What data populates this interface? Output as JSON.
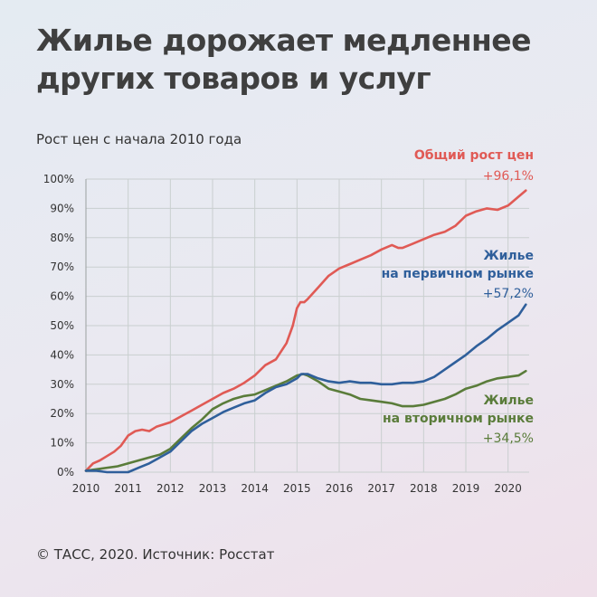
{
  "header": {
    "title_line1": "Жилье дорожает медленнее",
    "title_line2": "других товаров и услуг",
    "subtitle": "Рост цен с начала 2010 года"
  },
  "footer": {
    "source": "© ТАСС, 2020. Источник: Росстат"
  },
  "colors": {
    "red": "#e05a55",
    "blue": "#2f5f9b",
    "green": "#5a7c3a"
  },
  "chart_data": {
    "type": "line",
    "title": "",
    "xlabel": "",
    "ylabel": "",
    "x_ticks": [
      "2010",
      "2011",
      "2012",
      "2013",
      "2014",
      "2015",
      "2016",
      "2017",
      "2018",
      "2019",
      "2020"
    ],
    "y_ticks": [
      "0%",
      "10%",
      "20%",
      "30%",
      "40%",
      "50%",
      "60%",
      "70%",
      "80%",
      "90%",
      "100%"
    ],
    "xlim": [
      2010,
      2020.5
    ],
    "ylim": [
      0,
      100
    ],
    "grid": true,
    "series": [
      {
        "name_line1": "Общий рост цен",
        "name_line2": "",
        "end_label": "+96,1%",
        "color": "#e05a55",
        "x": [
          2010,
          2010.17,
          2010.33,
          2010.5,
          2010.67,
          2010.83,
          2011,
          2011.17,
          2011.33,
          2011.5,
          2011.67,
          2012,
          2012.25,
          2012.5,
          2012.75,
          2013,
          2013.25,
          2013.5,
          2013.75,
          2014,
          2014.25,
          2014.5,
          2014.75,
          2014.9,
          2015,
          2015.08,
          2015.17,
          2015.25,
          2015.5,
          2015.75,
          2016,
          2016.25,
          2016.5,
          2016.75,
          2017,
          2017.25,
          2017.4,
          2017.5,
          2017.75,
          2018,
          2018.25,
          2018.5,
          2018.75,
          2019,
          2019.25,
          2019.5,
          2019.75,
          2020,
          2020.25,
          2020.42
        ],
        "values": [
          0.5,
          3,
          4,
          5.5,
          7,
          9,
          12.5,
          14,
          14.5,
          14,
          15.5,
          17,
          19,
          21,
          23,
          25,
          27,
          28.5,
          30.5,
          33,
          36.5,
          38.5,
          44,
          50,
          56,
          58,
          58,
          59,
          63,
          67,
          69.5,
          71,
          72.5,
          74,
          76,
          77.5,
          76.5,
          76.5,
          78,
          79.5,
          81,
          82,
          84,
          87.5,
          89,
          90,
          89.5,
          91,
          94,
          96.1
        ]
      },
      {
        "name_line1": "Жилье",
        "name_line2": "на первичном рынке",
        "end_label": "+57,2%",
        "color": "#2f5f9b",
        "x": [
          2010,
          2010.25,
          2010.5,
          2010.75,
          2011,
          2011.25,
          2011.5,
          2011.75,
          2012,
          2012.25,
          2012.5,
          2012.75,
          2013,
          2013.25,
          2013.5,
          2013.75,
          2014,
          2014.25,
          2014.5,
          2014.75,
          2015,
          2015.1,
          2015.25,
          2015.5,
          2015.75,
          2016,
          2016.25,
          2016.5,
          2016.75,
          2017,
          2017.25,
          2017.5,
          2017.75,
          2018,
          2018.25,
          2018.5,
          2018.75,
          2019,
          2019.25,
          2019.5,
          2019.75,
          2020,
          2020.25,
          2020.42
        ],
        "values": [
          0.5,
          0.5,
          0,
          0,
          0,
          1.5,
          3,
          5,
          7,
          10.5,
          14,
          16.5,
          18.5,
          20.5,
          22,
          23.5,
          24.5,
          27,
          29,
          30,
          32,
          33.5,
          33.5,
          32,
          31,
          30.5,
          31,
          30.5,
          30.5,
          30,
          30,
          30.5,
          30.5,
          31,
          32.5,
          35,
          37.5,
          40,
          43,
          45.5,
          48.5,
          51,
          53.5,
          57.2
        ]
      },
      {
        "name_line1": "Жилье",
        "name_line2": "на вторичном рынке",
        "end_label": "+34,5%",
        "color": "#5a7c3a",
        "x": [
          2010,
          2010.25,
          2010.5,
          2010.75,
          2011,
          2011.25,
          2011.5,
          2011.75,
          2012,
          2012.25,
          2012.5,
          2012.75,
          2013,
          2013.25,
          2013.5,
          2013.75,
          2014,
          2014.25,
          2014.5,
          2014.75,
          2015,
          2015.15,
          2015.25,
          2015.5,
          2015.75,
          2016,
          2016.25,
          2016.5,
          2016.75,
          2017,
          2017.25,
          2017.5,
          2017.75,
          2018,
          2018.25,
          2018.5,
          2018.75,
          2019,
          2019.25,
          2019.5,
          2019.75,
          2020,
          2020.25,
          2020.42
        ],
        "values": [
          0.5,
          1,
          1.5,
          2,
          3,
          4,
          5,
          6,
          8,
          11.5,
          15,
          18,
          21.5,
          23.5,
          25,
          26,
          26.5,
          28,
          29.5,
          31,
          33,
          33.5,
          33,
          31,
          28.5,
          27.5,
          26.5,
          25,
          24.5,
          24,
          23.5,
          22.5,
          22.5,
          23,
          24,
          25,
          26.5,
          28.5,
          29.5,
          31,
          32,
          32.5,
          33,
          34.5
        ]
      }
    ]
  }
}
